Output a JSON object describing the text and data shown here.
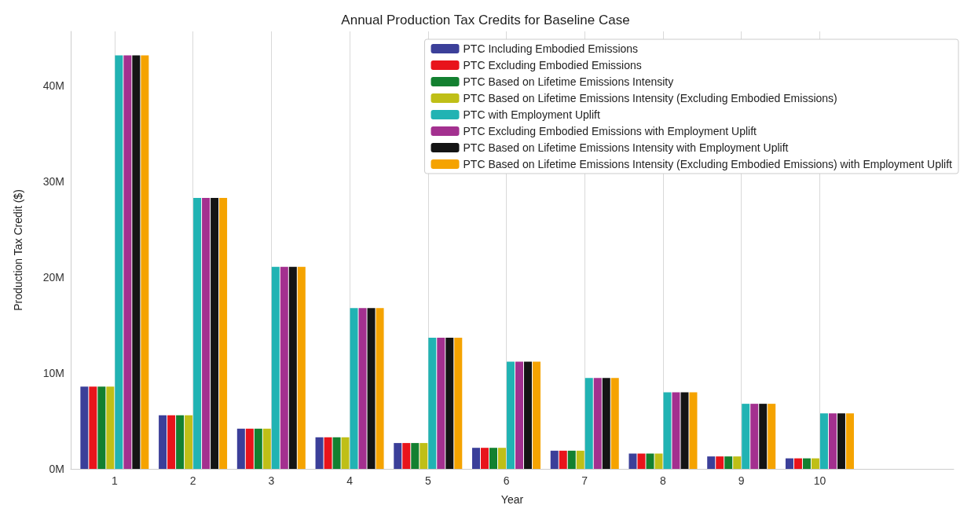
{
  "chart_data": {
    "type": "bar",
    "title": "Annual Production Tax Credits for Baseline Case",
    "xlabel": "Year",
    "ylabel": "Production Tax Credit ($)",
    "x": [
      1,
      2,
      3,
      4,
      5,
      6,
      7,
      8,
      9,
      10
    ],
    "xlim": [
      0.44,
      11.71
    ],
    "xticks": [
      1,
      2,
      3,
      4,
      5,
      6,
      7,
      8,
      9,
      10
    ],
    "ylim": [
      0,
      45700000
    ],
    "yticks": [
      {
        "value": 0,
        "label": "0M"
      },
      {
        "value": 10000000,
        "label": "10M"
      },
      {
        "value": 20000000,
        "label": "20M"
      },
      {
        "value": 30000000,
        "label": "30M"
      },
      {
        "value": 40000000,
        "label": "40M"
      }
    ],
    "grid": "x",
    "legend": "top right",
    "series": [
      {
        "name": "PTC Including Embodied Emissions",
        "color": "#3b3f99",
        "values": [
          8600000,
          5600000,
          4200000,
          3300000,
          2700000,
          2200000,
          1900000,
          1600000,
          1300000,
          1100000
        ]
      },
      {
        "name": "PTC Excluding Embodied Emissions",
        "color": "#e8141b",
        "values": [
          8600000,
          5600000,
          4200000,
          3300000,
          2700000,
          2200000,
          1900000,
          1600000,
          1300000,
          1100000
        ]
      },
      {
        "name": "PTC Based on Lifetime Emissions Intensity",
        "color": "#138030",
        "values": [
          8600000,
          5600000,
          4200000,
          3300000,
          2700000,
          2200000,
          1900000,
          1600000,
          1300000,
          1100000
        ]
      },
      {
        "name": "PTC Based on Lifetime Emissions Intensity (Excluding Embodied Emissions)",
        "color": "#bfbf17",
        "values": [
          8600000,
          5600000,
          4200000,
          3300000,
          2700000,
          2200000,
          1900000,
          1600000,
          1300000,
          1100000
        ]
      },
      {
        "name": "PTC with Employment Uplift",
        "color": "#21b3b3",
        "values": [
          43200000,
          28300000,
          21100000,
          16800000,
          13700000,
          11200000,
          9500000,
          8000000,
          6800000,
          5800000
        ]
      },
      {
        "name": "PTC Excluding Embodied Emissions with Employment Uplift",
        "color": "#a3308f",
        "values": [
          43200000,
          28300000,
          21100000,
          16800000,
          13700000,
          11200000,
          9500000,
          8000000,
          6800000,
          5800000
        ]
      },
      {
        "name": "PTC Based on Lifetime Emissions Intensity with Employment Uplift",
        "color": "#141414",
        "values": [
          43200000,
          28300000,
          21100000,
          16800000,
          13700000,
          11200000,
          9500000,
          8000000,
          6800000,
          5800000
        ]
      },
      {
        "name": "PTC Based on Lifetime Emissions Intensity (Excluding Embodied Emissions) with Employment Uplift",
        "color": "#f5a300",
        "values": [
          43200000,
          28300000,
          21100000,
          16800000,
          13700000,
          11200000,
          9500000,
          8000000,
          6800000,
          5800000
        ]
      }
    ]
  }
}
